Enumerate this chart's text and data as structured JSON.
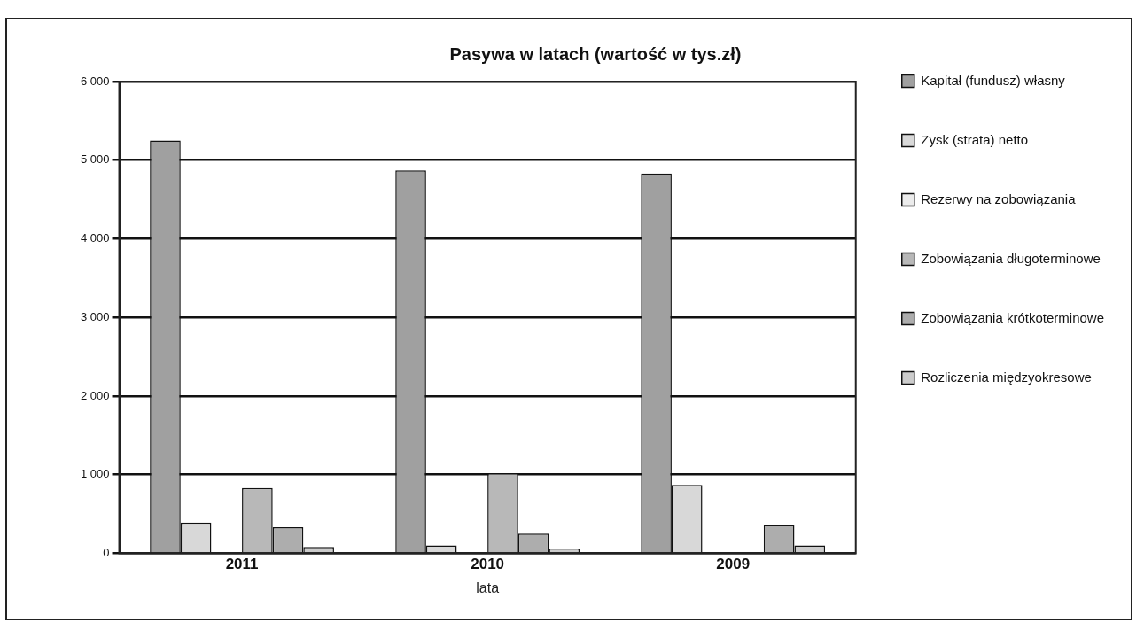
{
  "chart_data": {
    "type": "bar",
    "title": "Pasywa w latach (wartość w tys.zł)",
    "xlabel": "lata",
    "categories": [
      "2011",
      "2010",
      "2009"
    ],
    "series": [
      {
        "name": "Kapitał (fundusz) własny",
        "color": "#a0a0a0",
        "values": [
          5250,
          4870,
          4830
        ]
      },
      {
        "name": "Zysk (strata) netto",
        "color": "#d8d8d8",
        "values": [
          390,
          100,
          870
        ]
      },
      {
        "name": "Rezerwy na zobowiązania",
        "color": "#ececec",
        "values": [
          0,
          0,
          0
        ]
      },
      {
        "name": "Zobowiązania długoterminowe",
        "color": "#b8b8b8",
        "values": [
          830,
          1020,
          0
        ]
      },
      {
        "name": "Zobowiązania krótkoterminowe",
        "color": "#adadad",
        "values": [
          330,
          250,
          360
        ]
      },
      {
        "name": "Rozliczenia międzyokresowe",
        "color": "#cccccc",
        "values": [
          80,
          60,
          100
        ]
      }
    ],
    "ylim": [
      0,
      6000
    ],
    "yticks": [
      {
        "value": 0,
        "label": "0"
      },
      {
        "value": 1000,
        "label": "1 000"
      },
      {
        "value": 2000,
        "label": "2 000"
      },
      {
        "value": 3000,
        "label": "3 000"
      },
      {
        "value": 4000,
        "label": "4 000"
      },
      {
        "value": 5000,
        "label": "5 000"
      },
      {
        "value": 6000,
        "label": "6 000"
      }
    ],
    "grid": "y",
    "legend": "right"
  }
}
